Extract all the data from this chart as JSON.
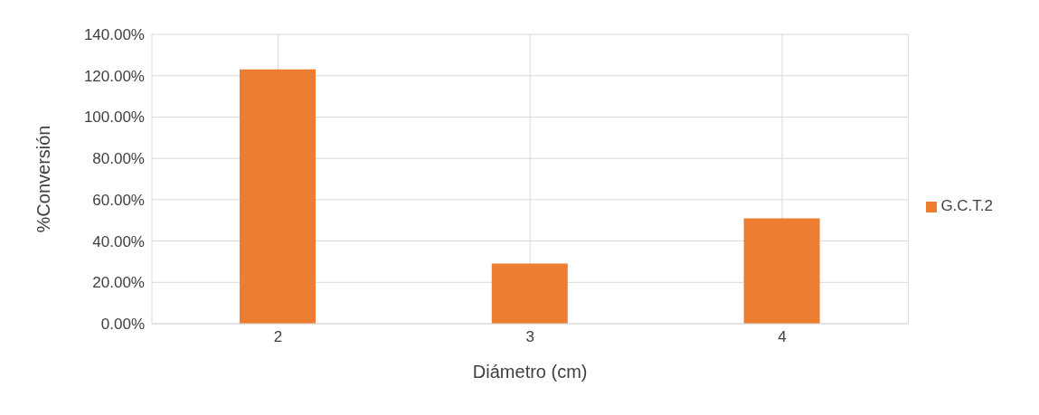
{
  "chart_data": {
    "type": "bar",
    "xlabel": "Diámetro (cm)",
    "ylabel": "%Conversión",
    "categories": [
      "2",
      "3",
      "4"
    ],
    "series": [
      {
        "name": "G.C.T.2",
        "color": "#ed7d31",
        "values": [
          123.1,
          29.1,
          51.0
        ]
      }
    ],
    "ylim": [
      0,
      140
    ],
    "yticks": [
      {
        "value": 0,
        "label": "0.00%"
      },
      {
        "value": 20,
        "label": "20.00%"
      },
      {
        "value": 40,
        "label": "40.00%"
      },
      {
        "value": 60,
        "label": "60.00%"
      },
      {
        "value": 80,
        "label": "80.00%"
      },
      {
        "value": 100,
        "label": "100.00%"
      },
      {
        "value": 120,
        "label": "120.00%"
      },
      {
        "value": 140,
        "label": "140.00%"
      }
    ],
    "grid": true,
    "legend": "right"
  }
}
